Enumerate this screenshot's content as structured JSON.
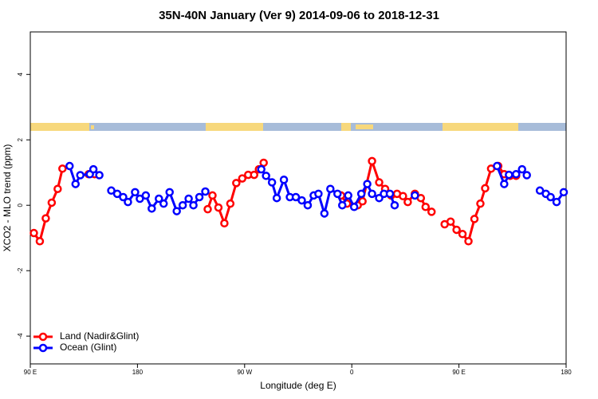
{
  "chart_data": {
    "type": "line",
    "title": "35N-40N January (Ver 9)   2014-09-06 to 2018-12-31",
    "x_label": "Longitude (deg E)",
    "y_label": "XCO2 - MLO trend (ppm)",
    "xlim": [
      90,
      540
    ],
    "ylim": [
      -4.85,
      5.3
    ],
    "xticks": [
      {
        "value": 90,
        "label": "90 E"
      },
      180,
      {
        "value": 270,
        "label": "90 W"
      },
      {
        "value": 360,
        "label": "0"
      },
      {
        "value": 450,
        "label": "90 E"
      },
      {
        "value": 540,
        "label": "180"
      }
    ],
    "yticks": [
      -4,
      -2,
      0,
      2,
      4
    ],
    "legend": "lower left",
    "series": [
      {
        "name": "Land (Nadir&Glint)",
        "color": "#ff0000",
        "x": [
          93,
          98,
          103,
          108,
          113,
          117,
          130,
          139,
          144,
          150,
          239,
          243,
          248,
          253,
          258,
          263,
          268,
          273,
          278,
          282,
          286,
          300,
          351,
          356,
          365,
          369,
          377,
          383,
          388,
          393,
          398,
          403,
          407,
          413,
          418,
          422,
          427,
          432,
          438,
          443,
          448,
          453,
          458,
          463,
          468,
          472,
          477,
          483,
          488,
          493,
          498
        ],
        "values": [
          -0.85,
          -1.1,
          -0.4,
          0.08,
          0.5,
          1.12,
          null,
          0.95,
          0.95,
          null,
          -0.12,
          0.3,
          -0.07,
          -0.55,
          0.05,
          0.68,
          0.82,
          0.93,
          0.93,
          1.1,
          1.3,
          null,
          0.3,
          0.05,
          0.0,
          0.12,
          1.35,
          0.7,
          0.5,
          0.3,
          0.35,
          0.28,
          0.1,
          0.35,
          0.22,
          -0.05,
          -0.2,
          null,
          -0.58,
          -0.5,
          -0.75,
          -0.88,
          -1.1,
          -0.42,
          0.05,
          0.52,
          1.12,
          1.2,
          0.95,
          0.9,
          0.9
        ]
      },
      {
        "name": "Ocean (Glint)",
        "color": "#0000ff",
        "x": [
          123,
          128,
          132,
          140,
          143,
          148,
          153,
          158,
          163,
          168,
          172,
          178,
          182,
          187,
          192,
          198,
          202,
          207,
          213,
          218,
          223,
          227,
          232,
          237,
          260,
          284,
          288,
          293,
          297,
          303,
          308,
          313,
          318,
          323,
          328,
          332,
          337,
          342,
          348,
          352,
          357,
          362,
          368,
          373,
          377,
          383,
          387,
          392,
          396,
          405,
          413,
          450,
          482,
          488,
          492,
          498,
          503,
          507,
          512,
          518,
          523,
          527,
          532,
          538
        ],
        "values": [
          1.2,
          0.65,
          0.92,
          0.95,
          1.1,
          0.92,
          null,
          0.45,
          0.35,
          0.25,
          0.1,
          0.4,
          0.2,
          0.3,
          -0.1,
          0.2,
          0.05,
          0.4,
          -0.18,
          0.0,
          0.2,
          0.0,
          0.25,
          0.42,
          null,
          1.1,
          0.9,
          0.7,
          0.22,
          0.78,
          0.25,
          0.25,
          0.15,
          0.0,
          0.3,
          0.35,
          -0.25,
          0.5,
          0.35,
          0.0,
          0.3,
          -0.05,
          0.35,
          0.65,
          0.35,
          0.22,
          0.35,
          0.35,
          0.0,
          null,
          0.3,
          null,
          1.2,
          0.65,
          0.93,
          0.95,
          1.1,
          0.92,
          null,
          0.45,
          0.35,
          0.25,
          0.1,
          0.4
        ]
      }
    ]
  }
}
